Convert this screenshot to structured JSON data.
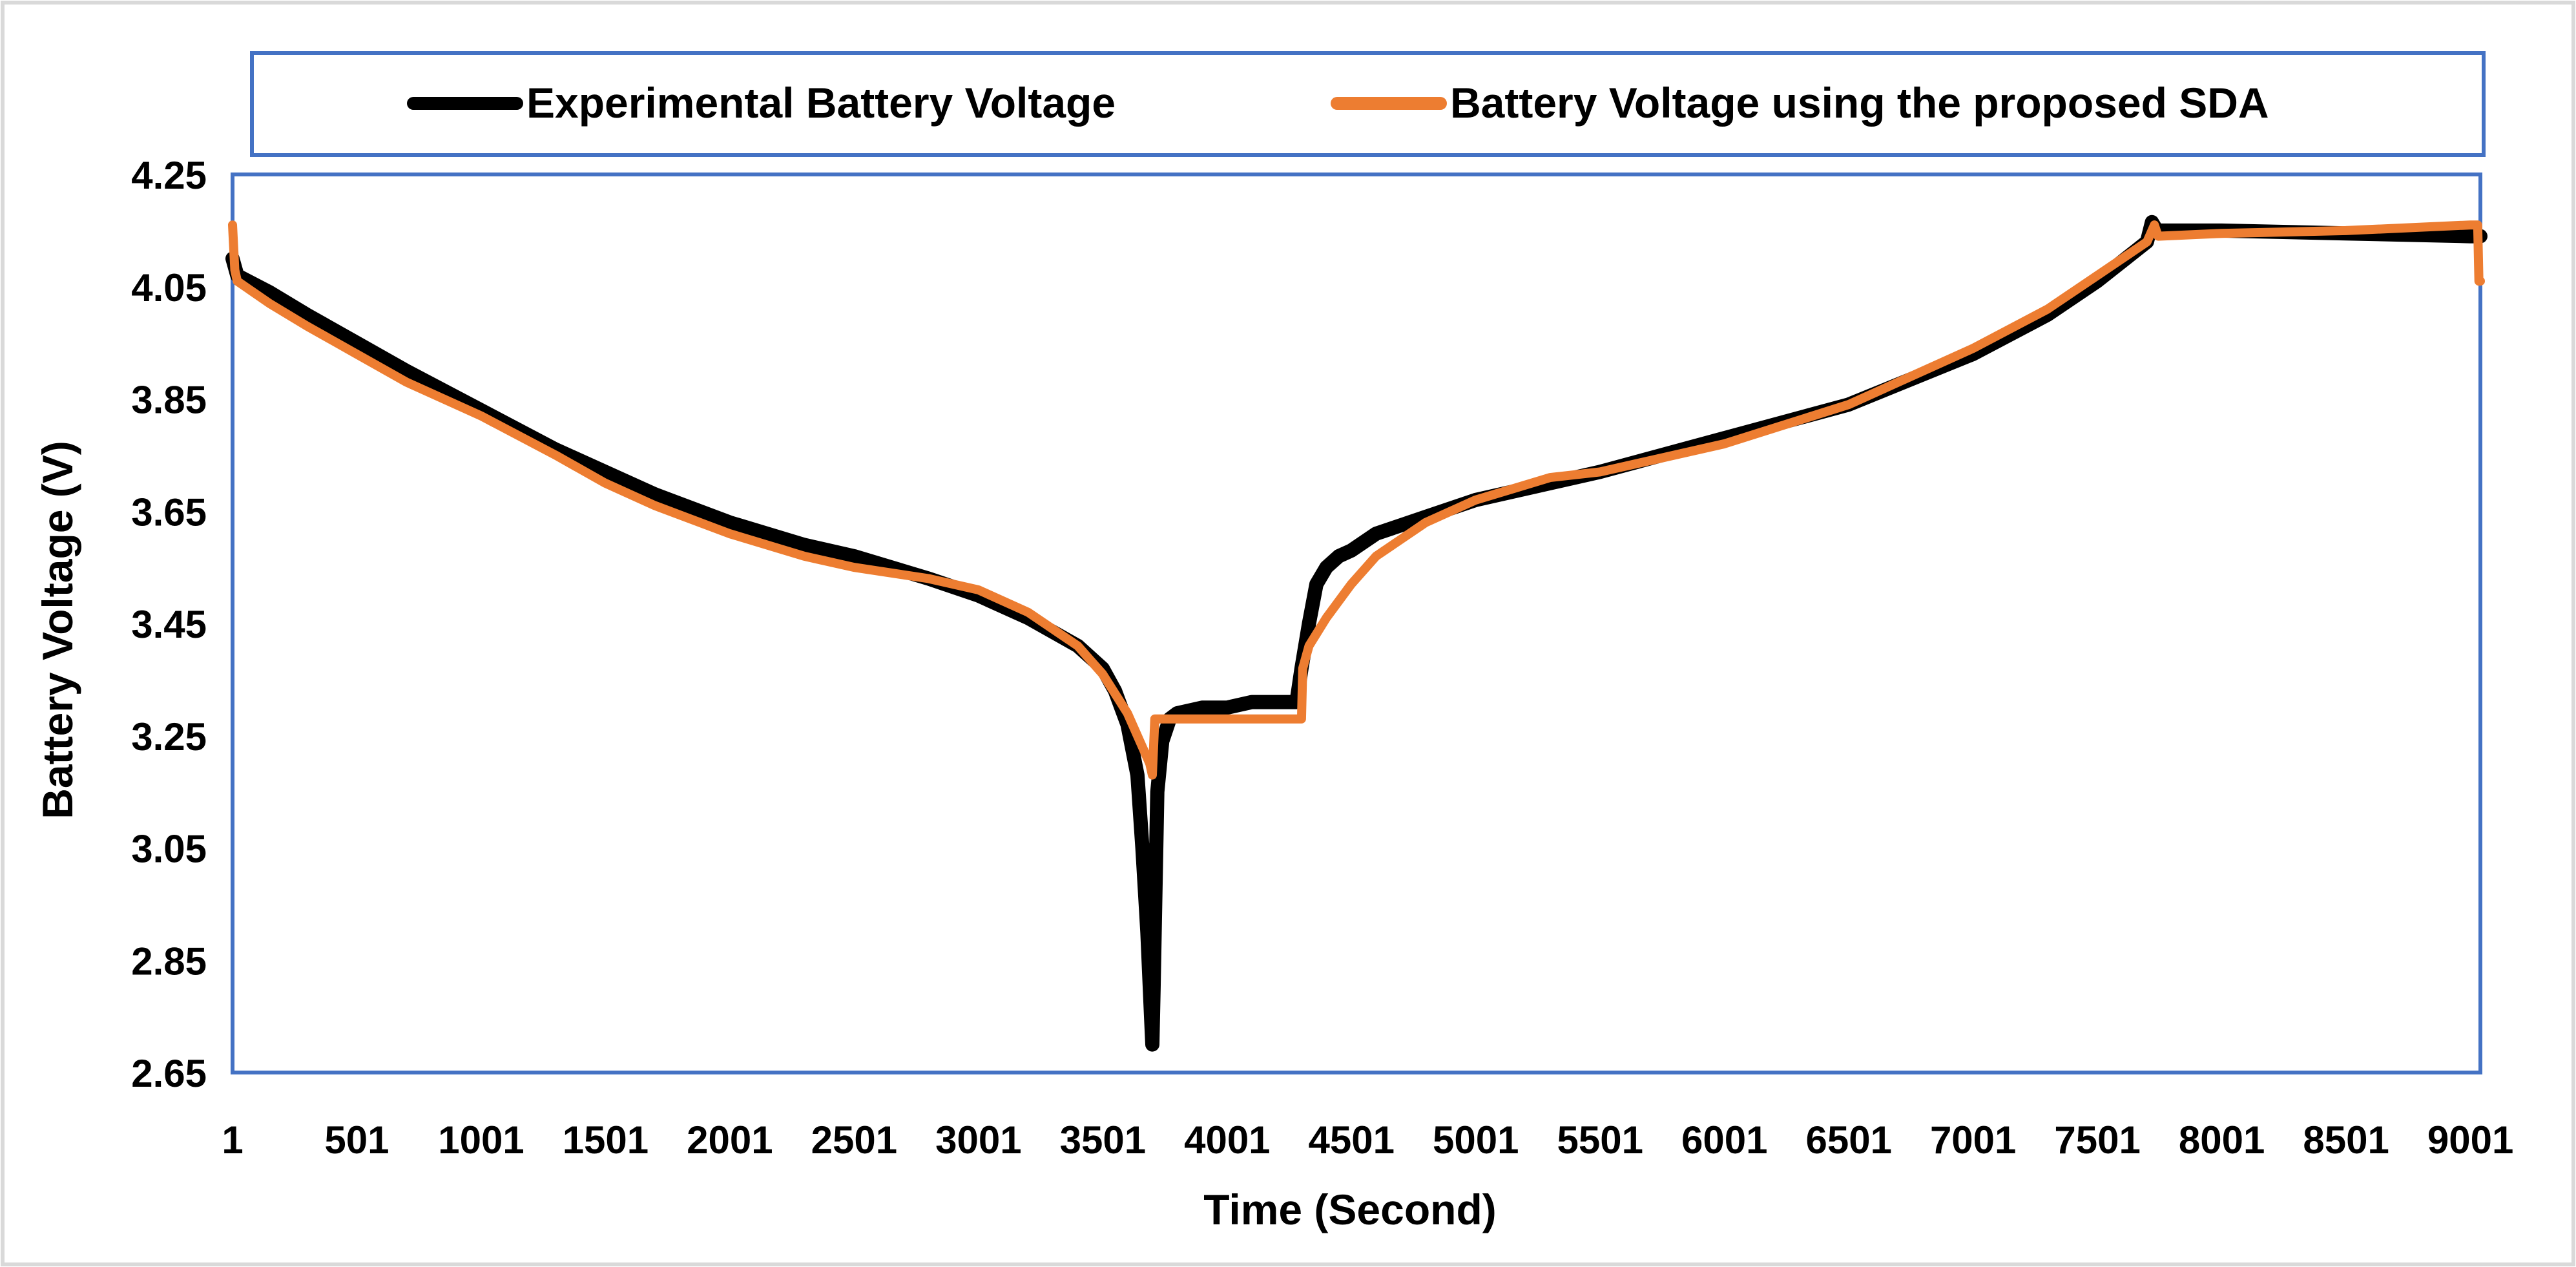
{
  "chart_data": {
    "type": "line",
    "title": "",
    "xlabel": "Time (Second)",
    "ylabel": "Battery Voltage (V)",
    "xlim": [
      1,
      9041
    ],
    "ylim": [
      2.65,
      4.25
    ],
    "x_ticks": [
      1,
      501,
      1001,
      1501,
      2001,
      2501,
      3001,
      3501,
      4001,
      4501,
      5001,
      5501,
      6001,
      6501,
      7001,
      7501,
      8001,
      8501,
      9001
    ],
    "x_tick_labels": [
      "1",
      "501",
      "1001",
      "1501",
      "2001",
      "2501",
      "3001",
      "3501",
      "4001",
      "4501",
      "5001",
      "5501",
      "6001",
      "6501",
      "7001",
      "7501",
      "8001",
      "8501",
      "9001"
    ],
    "y_ticks": [
      2.65,
      2.85,
      3.05,
      3.25,
      3.45,
      3.65,
      3.85,
      4.05,
      4.25
    ],
    "y_tick_labels": [
      "2.65",
      "2.85",
      "3.05",
      "3.25",
      "3.45",
      "3.65",
      "3.85",
      "4.05",
      "4.25"
    ],
    "grid": false,
    "legend_position": "top",
    "series": [
      {
        "name": "Experimental Battery Voltage",
        "color": "#000000",
        "x": [
          1,
          20,
          150,
          300,
          500,
          700,
          1000,
          1300,
          1500,
          1700,
          2000,
          2300,
          2500,
          2800,
          3000,
          3200,
          3400,
          3500,
          3550,
          3600,
          3640,
          3660,
          3680,
          3695,
          3700,
          3705,
          3720,
          3740,
          3770,
          3800,
          3900,
          4000,
          4100,
          4200,
          4280,
          4300,
          4330,
          4360,
          4400,
          4450,
          4500,
          4600,
          4800,
          5000,
          5300,
          5500,
          6000,
          6500,
          7000,
          7300,
          7500,
          7700,
          7720,
          7740,
          8000,
          8500,
          9000,
          9041
        ],
        "values": [
          4.1,
          4.07,
          4.04,
          4.0,
          3.95,
          3.9,
          3.83,
          3.76,
          3.72,
          3.68,
          3.63,
          3.59,
          3.57,
          3.53,
          3.5,
          3.46,
          3.41,
          3.37,
          3.33,
          3.27,
          3.18,
          3.05,
          2.9,
          2.75,
          2.7,
          2.8,
          3.15,
          3.24,
          3.28,
          3.29,
          3.3,
          3.3,
          3.31,
          3.31,
          3.31,
          3.37,
          3.45,
          3.52,
          3.55,
          3.57,
          3.58,
          3.61,
          3.64,
          3.67,
          3.7,
          3.72,
          3.78,
          3.84,
          3.93,
          4.0,
          4.06,
          4.13,
          4.165,
          4.15,
          4.15,
          4.145,
          4.14,
          4.14
        ]
      },
      {
        "name": "Battery Voltage using the proposed SDA",
        "color": "#ED7D31",
        "x": [
          1,
          10,
          20,
          150,
          300,
          500,
          700,
          1000,
          1300,
          1500,
          1700,
          2000,
          2300,
          2500,
          2800,
          3000,
          3200,
          3400,
          3500,
          3600,
          3690,
          3700,
          3705,
          3710,
          3800,
          4000,
          4200,
          4300,
          4305,
          4330,
          4400,
          4500,
          4600,
          4800,
          5000,
          5300,
          5500,
          6000,
          6500,
          7000,
          7300,
          7500,
          7700,
          7730,
          7745,
          8000,
          8500,
          9000,
          9030,
          9035,
          9041
        ],
        "values": [
          4.16,
          4.08,
          4.06,
          4.02,
          3.98,
          3.93,
          3.88,
          3.82,
          3.75,
          3.7,
          3.66,
          3.61,
          3.57,
          3.55,
          3.53,
          3.51,
          3.47,
          3.41,
          3.36,
          3.29,
          3.2,
          3.18,
          3.23,
          3.28,
          3.28,
          3.28,
          3.28,
          3.28,
          3.37,
          3.41,
          3.46,
          3.52,
          3.57,
          3.63,
          3.67,
          3.71,
          3.72,
          3.77,
          3.84,
          3.94,
          4.01,
          4.07,
          4.13,
          4.16,
          4.14,
          4.145,
          4.15,
          4.16,
          4.16,
          4.06,
          4.06
        ]
      }
    ]
  }
}
